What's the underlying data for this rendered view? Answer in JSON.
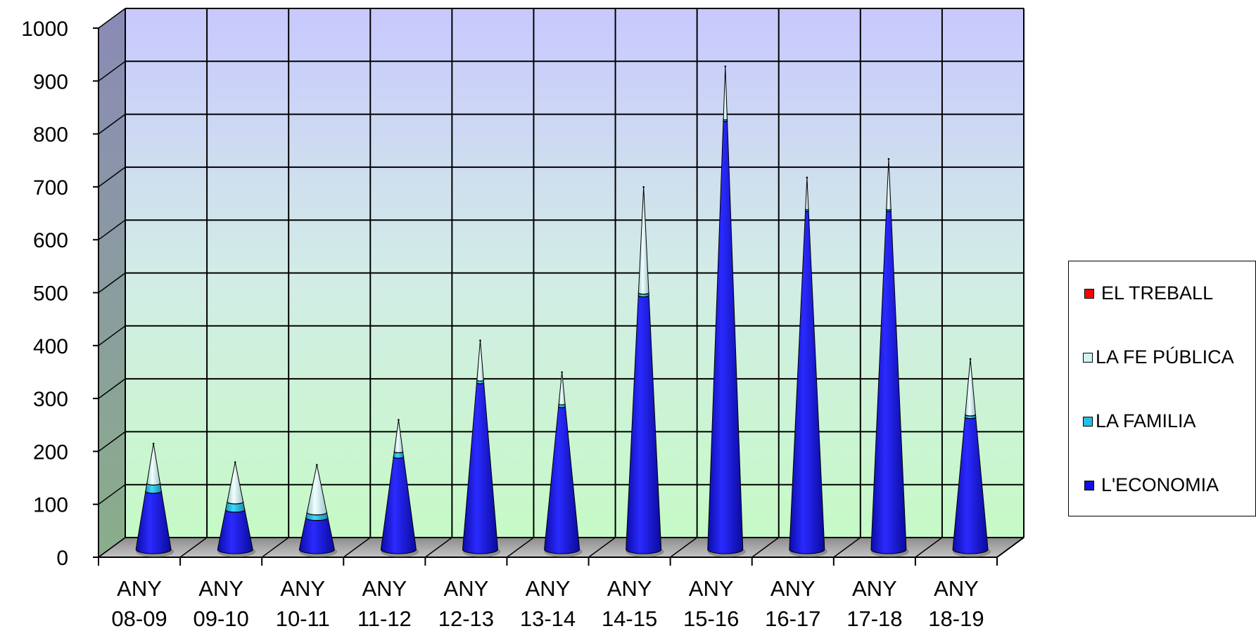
{
  "chart_data": {
    "type": "bar",
    "shape": "cone",
    "stacked": true,
    "categories": [
      [
        "ANY",
        "08-09"
      ],
      [
        "ANY",
        "09-10"
      ],
      [
        "ANY",
        "10-11"
      ],
      [
        "ANY",
        "11-12"
      ],
      [
        "ANY",
        "12-13"
      ],
      [
        "ANY",
        "13-14"
      ],
      [
        "ANY",
        "14-15"
      ],
      [
        "ANY",
        "15-16"
      ],
      [
        "ANY",
        "16-17"
      ],
      [
        "ANY",
        "17-18"
      ],
      [
        "ANY",
        "18-19"
      ]
    ],
    "series": [
      {
        "name": "L'ECONOMIA",
        "color": "#1010e6",
        "values": [
          110,
          75,
          60,
          175,
          315,
          270,
          480,
          810,
          640,
          640,
          250
        ]
      },
      {
        "name": "LA FAMILIA",
        "color": "#22c0e8",
        "values": [
          15,
          15,
          10,
          10,
          5,
          5,
          5,
          3,
          3,
          3,
          5
        ]
      },
      {
        "name": "LA FE PÚBLICA",
        "color": "#cdf3f6",
        "values": [
          75,
          75,
          90,
          60,
          75,
          60,
          200,
          100,
          60,
          95,
          105
        ]
      },
      {
        "name": "EL TREBALL",
        "color": "#ff0000",
        "values": [
          0,
          0,
          0,
          0,
          0,
          0,
          0,
          0,
          0,
          0,
          0
        ]
      }
    ],
    "legend_order": [
      "EL TREBALL",
      "LA FE PÚBLICA",
      "LA FAMILIA",
      "L'ECONOMIA"
    ],
    "yticks": [
      "0",
      "100",
      "200",
      "300",
      "400",
      "500",
      "600",
      "700",
      "800",
      "900",
      "1000"
    ],
    "ylim": [
      0,
      1000
    ],
    "grid": true,
    "legend_position": "right",
    "title": "",
    "xlabel": "",
    "ylabel": ""
  }
}
